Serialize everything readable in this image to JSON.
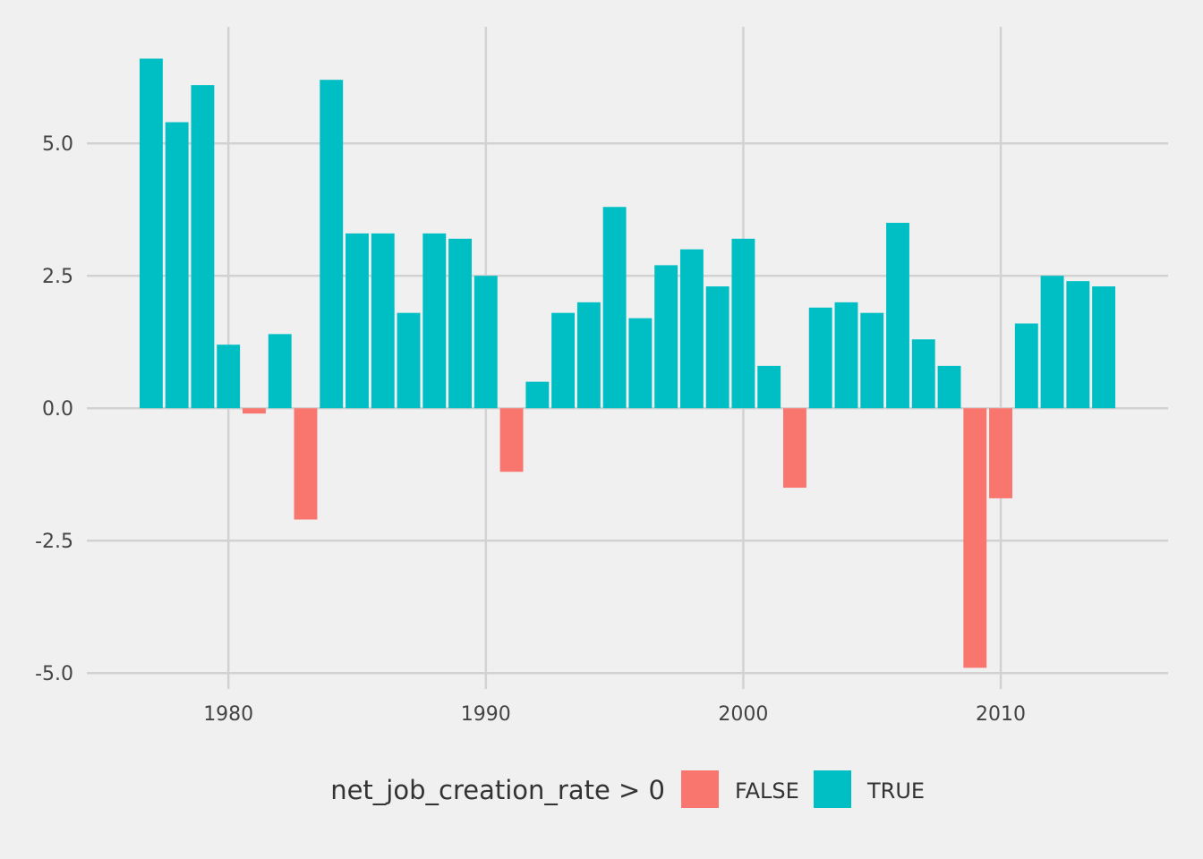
{
  "chart_data": {
    "type": "bar",
    "x": [
      1977,
      1978,
      1979,
      1980,
      1981,
      1982,
      1983,
      1984,
      1985,
      1986,
      1987,
      1988,
      1989,
      1990,
      1991,
      1992,
      1993,
      1994,
      1995,
      1996,
      1997,
      1998,
      1999,
      2000,
      2001,
      2002,
      2003,
      2004,
      2005,
      2006,
      2007,
      2008,
      2009,
      2010,
      2011,
      2012,
      2013,
      2014
    ],
    "values": [
      6.6,
      5.4,
      6.1,
      1.2,
      -0.1,
      1.4,
      -2.1,
      6.2,
      3.3,
      3.3,
      1.8,
      3.3,
      3.2,
      2.5,
      -1.2,
      0.5,
      1.8,
      2.0,
      3.8,
      1.7,
      2.7,
      3.0,
      2.3,
      3.2,
      0.8,
      -1.5,
      1.9,
      2.0,
      1.8,
      3.5,
      1.3,
      0.8,
      -4.9,
      -1.7,
      1.6,
      2.5,
      2.4,
      2.3
    ],
    "fill_by": "net_job_creation_rate > 0",
    "xlim": [
      1974.5,
      2016.5
    ],
    "ylim": [
      -5.3,
      7.2
    ],
    "x_ticks": [
      1980,
      1990,
      2000,
      2010
    ],
    "x_tick_labels": [
      "1980",
      "1990",
      "2000",
      "2010"
    ],
    "y_ticks": [
      5.0,
      2.5,
      0.0,
      -2.5,
      -5.0
    ],
    "y_tick_labels": [
      "5.0",
      "2.5",
      "0.0",
      "-2.5",
      "-5.0"
    ],
    "grid": true,
    "legend": {
      "placement": "bottom",
      "title": "net_job_creation_rate > 0",
      "entries": [
        {
          "label": "FALSE",
          "color": "#f8766d"
        },
        {
          "label": "TRUE",
          "color": "#00bfc4"
        }
      ]
    },
    "colors": {
      "positive": "#00bfc4",
      "negative": "#f8766d",
      "grid": "#d2d2d2",
      "background": "#f0f0f0"
    }
  }
}
